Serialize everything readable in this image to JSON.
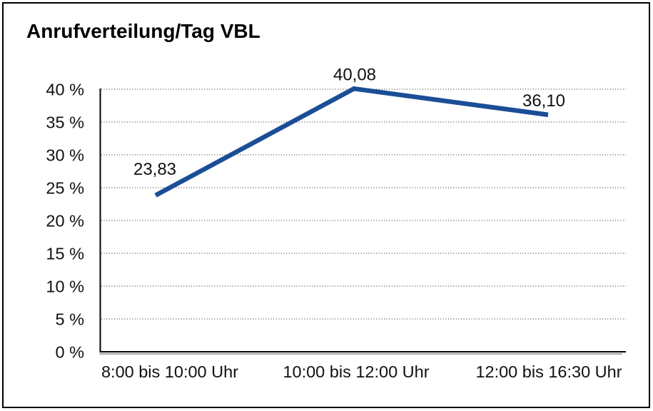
{
  "title": "Anrufverteilung/Tag VBL",
  "colors": {
    "line": "#1A4E96",
    "grid": "#4d4d4d",
    "axis": "#000000",
    "axis_shadow": "#8c8c8c",
    "text": "#111111",
    "background": "#ffffff",
    "border": "#000000"
  },
  "chart_data": {
    "type": "line",
    "title": "Anrufverteilung/Tag VBL",
    "categories": [
      "8:00 bis 10:00 Uhr",
      "10:00 bis 12:00 Uhr",
      "12:00 bis 16:30 Uhr"
    ],
    "values": [
      23.83,
      40.08,
      36.1
    ],
    "value_labels": [
      "23,83",
      "40,08",
      "36,10"
    ],
    "xlabel": "",
    "ylabel": "",
    "ylim": [
      0,
      40
    ],
    "ytick_step": 5,
    "ytick_labels": [
      "0 %",
      "5 %",
      "10 %",
      "15 %",
      "20 %",
      "25 %",
      "30 %",
      "35 %",
      "40 %"
    ],
    "grid": "horizontal-dotted",
    "legend": "none",
    "markers": "none"
  }
}
